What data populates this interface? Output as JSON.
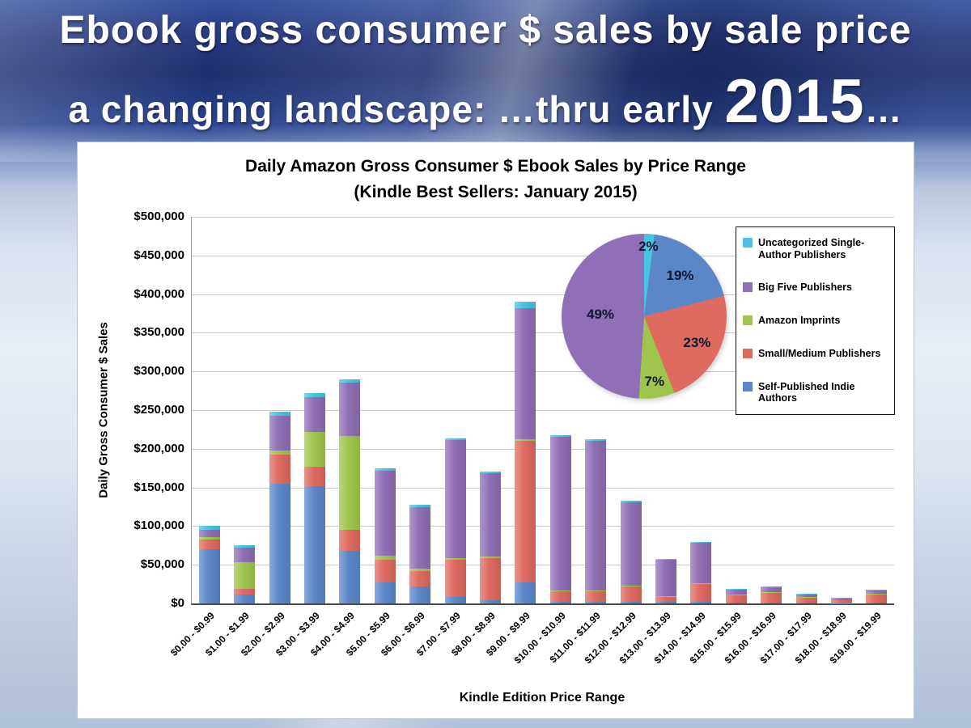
{
  "slide": {
    "title_line1": "Ebook gross consumer $ sales by sale price",
    "title_line2_pre": "a changing landscape: …thru early ",
    "title_line2_year": "2015",
    "title_line2_post": "…"
  },
  "chart_data": {
    "type": "bar",
    "stacked": true,
    "title": "Daily Amazon Gross Consumer $ Ebook Sales by Price Range",
    "subtitle": "(Kindle Best Sellers: January 2015)",
    "xlabel": "Kindle Edition Price Range",
    "ylabel": "Daily Gross Consumer $ Sales",
    "ylim": [
      0,
      500000
    ],
    "ytick_step": 50000,
    "grid": true,
    "legend_position": "top-right",
    "categories": [
      "$0.00 - $0.99",
      "$1.00 - $1.99",
      "$2.00 - $2.99",
      "$3.00 - $3.99",
      "$4.00 - $4.99",
      "$5.00 - $5.99",
      "$6.00 - $6.99",
      "$7.00 - $7.99",
      "$8.00 - $8.99",
      "$9.00 - $9.99",
      "$10.00 - $10.99",
      "$11.00 - $11.99",
      "$12.00 - $12.99",
      "$13.00 - $13.99",
      "$14.00 - $14.99",
      "$15.00 - $15.99",
      "$16.00 - $16.99",
      "$17.00 - $17.99",
      "$18.00 - $18.99",
      "$19.00 - $19.99"
    ],
    "series": [
      {
        "name": "Self-Published Indie Authors",
        "color": "#5B87C9",
        "values": [
          70000,
          11000,
          155000,
          152000,
          68000,
          27000,
          22000,
          8000,
          4000,
          27000,
          2000,
          2000,
          2000,
          2000,
          2000,
          1000,
          1000,
          1000,
          500,
          1000
        ]
      },
      {
        "name": "Small/Medium Publishers",
        "color": "#DE6A60",
        "values": [
          13000,
          8000,
          38000,
          25000,
          27000,
          30000,
          20000,
          48000,
          55000,
          183000,
          14000,
          14000,
          20000,
          7000,
          24000,
          10000,
          13000,
          7000,
          4000,
          11000
        ]
      },
      {
        "name": "Amazon Imprints",
        "color": "#9FC54D",
        "values": [
          3000,
          34000,
          5000,
          45000,
          122000,
          5000,
          3000,
          3000,
          2000,
          2000,
          1000,
          1000,
          1000,
          500,
          500,
          500,
          500,
          300,
          200,
          300
        ]
      },
      {
        "name": "Big Five Publishers",
        "color": "#8F6FB5",
        "values": [
          9000,
          19000,
          45000,
          45000,
          69000,
          110000,
          80000,
          152000,
          107000,
          170000,
          199000,
          193000,
          108000,
          47000,
          52000,
          6000,
          6000,
          3000,
          2000,
          5000
        ]
      },
      {
        "name": "Uncategorized Single-Author Publishers",
        "color": "#48C3E2",
        "values": [
          5000,
          3000,
          5000,
          5000,
          4000,
          3000,
          3000,
          2000,
          2000,
          8000,
          2000,
          2000,
          2000,
          1500,
          1500,
          1500,
          1500,
          1000,
          500,
          1000
        ]
      }
    ],
    "legend_order": [
      4,
      3,
      2,
      1,
      0
    ],
    "pie": {
      "slices": [
        {
          "label": "2%",
          "value": 2,
          "color": "#48C3E2",
          "series": "Uncategorized Single-Author Publishers"
        },
        {
          "label": "19%",
          "value": 19,
          "color": "#5B87C9",
          "series": "Self-Published Indie Authors"
        },
        {
          "label": "23%",
          "value": 23,
          "color": "#DE6A60",
          "series": "Small/Medium Publishers"
        },
        {
          "label": "7%",
          "value": 7,
          "color": "#9FC54D",
          "series": "Amazon Imprints"
        },
        {
          "label": "49%",
          "value": 49,
          "color": "#8F6FB5",
          "series": "Big Five Publishers"
        }
      ]
    }
  }
}
